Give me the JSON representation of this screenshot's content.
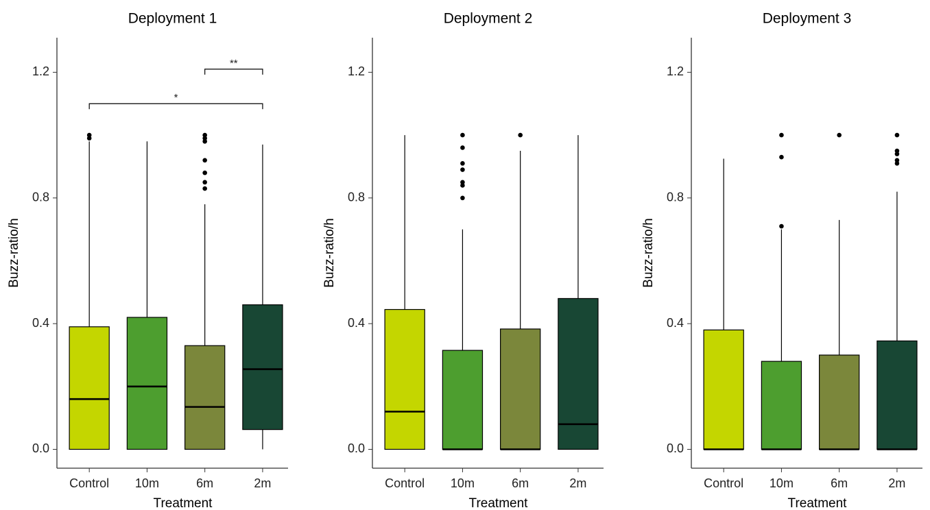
{
  "chart_data": [
    {
      "type": "box",
      "title": "Deployment 1",
      "xlabel": "Treatment",
      "ylabel": "Buzz-ratio/h",
      "categories": [
        "Control",
        "10m",
        "6m",
        "2m"
      ],
      "colors": [
        "#c4d600",
        "#4d9e2f",
        "#7b873b",
        "#184734"
      ],
      "boxes": [
        {
          "whislo": 0,
          "q1": 0,
          "med": 0.16,
          "q3": 0.39,
          "whishi": 0.98,
          "fliers": [
            1.0,
            0.99
          ]
        },
        {
          "whislo": 0,
          "q1": 0,
          "med": 0.2,
          "q3": 0.42,
          "whishi": 0.98,
          "fliers": []
        },
        {
          "whislo": 0,
          "q1": 0,
          "med": 0.135,
          "q3": 0.33,
          "whishi": 0.78,
          "fliers": [
            1.0,
            0.99,
            0.98,
            0.92,
            0.88,
            0.85,
            0.83
          ]
        },
        {
          "whislo": 0,
          "q1": 0.063,
          "med": 0.255,
          "q3": 0.46,
          "whishi": 0.97,
          "fliers": []
        }
      ],
      "annotations": [
        {
          "label": "*",
          "categories": [
            "Control",
            "2m"
          ],
          "y": 1.1
        },
        {
          "label": "**",
          "categories": [
            "6m",
            "2m"
          ],
          "y": 1.21
        }
      ],
      "ylim": [
        -0.06,
        1.31
      ],
      "yticks": [
        {
          "value": 0,
          "label": "0.0"
        },
        0.4,
        0.8,
        1.2
      ]
    },
    {
      "type": "box",
      "title": "Deployment 2",
      "xlabel": "Treatment",
      "ylabel": "Buzz-ratio/h",
      "categories": [
        "Control",
        "10m",
        "6m",
        "2m"
      ],
      "colors": [
        "#c4d600",
        "#4d9e2f",
        "#7b873b",
        "#184734"
      ],
      "boxes": [
        {
          "whislo": 0,
          "q1": 0,
          "med": 0.12,
          "q3": 0.445,
          "whishi": 1.0,
          "fliers": []
        },
        {
          "whislo": 0,
          "q1": 0,
          "med": 0.0,
          "q3": 0.315,
          "whishi": 0.7,
          "fliers": [
            1.0,
            0.96,
            0.91,
            0.89,
            0.85,
            0.84,
            0.8
          ]
        },
        {
          "whislo": 0,
          "q1": 0,
          "med": 0.0,
          "q3": 0.383,
          "whishi": 0.95,
          "fliers": [
            1.0
          ]
        },
        {
          "whislo": 0,
          "q1": 0,
          "med": 0.08,
          "q3": 0.48,
          "whishi": 1.0,
          "fliers": []
        }
      ],
      "annotations": [],
      "ylim": [
        -0.06,
        1.31
      ],
      "yticks": [
        {
          "value": 0,
          "label": "0.0"
        },
        0.4,
        0.8,
        1.2
      ]
    },
    {
      "type": "box",
      "title": "Deployment 3",
      "xlabel": "Treatment",
      "ylabel": "Buzz-ratio/h",
      "categories": [
        "Control",
        "10m",
        "6m",
        "2m"
      ],
      "colors": [
        "#c4d600",
        "#4d9e2f",
        "#7b873b",
        "#184734"
      ],
      "boxes": [
        {
          "whislo": 0,
          "q1": 0,
          "med": 0.0,
          "q3": 0.38,
          "whishi": 0.925,
          "fliers": []
        },
        {
          "whislo": 0,
          "q1": 0,
          "med": 0.0,
          "q3": 0.28,
          "whishi": 0.7,
          "fliers": [
            1.0,
            0.93,
            0.71
          ]
        },
        {
          "whislo": 0,
          "q1": 0,
          "med": 0.0,
          "q3": 0.3,
          "whishi": 0.73,
          "fliers": [
            1.0
          ]
        },
        {
          "whislo": 0,
          "q1": 0,
          "med": 0.0,
          "q3": 0.345,
          "whishi": 0.82,
          "fliers": [
            1.0,
            0.95,
            0.94,
            0.92,
            0.91
          ]
        }
      ],
      "annotations": [],
      "ylim": [
        -0.06,
        1.31
      ],
      "yticks": [
        {
          "value": 0,
          "label": "0.0"
        },
        0.4,
        0.8,
        1.2
      ]
    }
  ]
}
